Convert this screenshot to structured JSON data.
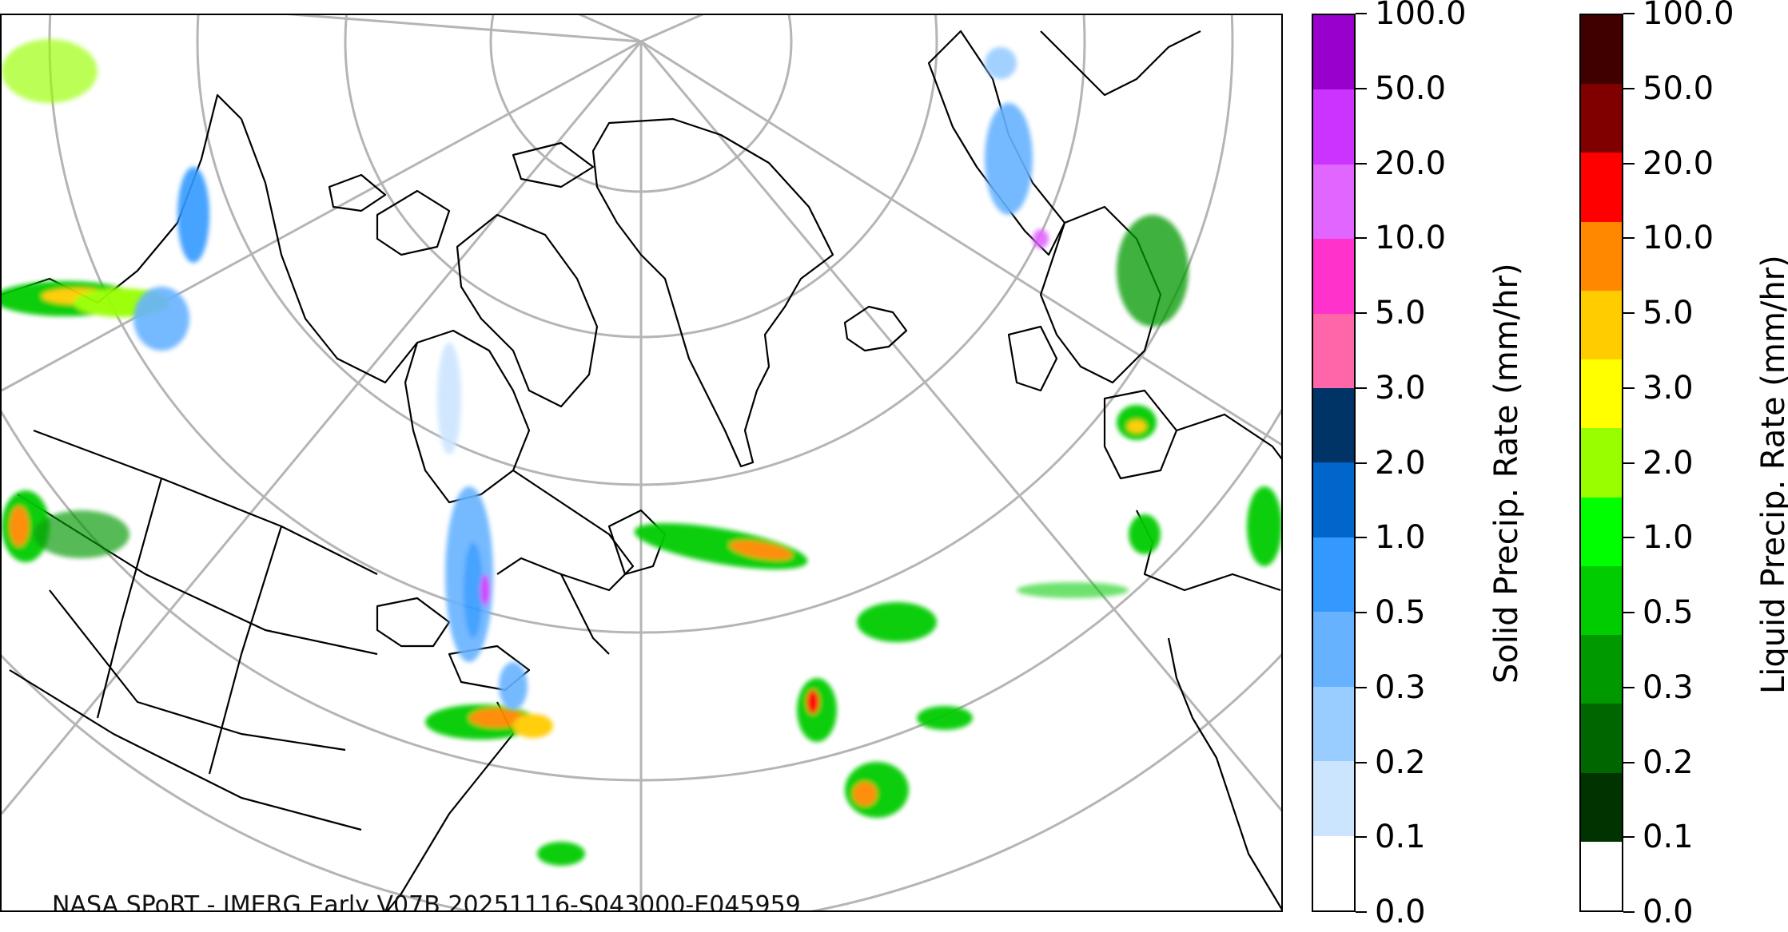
{
  "map": {
    "credit": "NASA SPoRT - IMERG Early V07B 20251116-S043000-E045959",
    "projection": "polar-stereographic",
    "gridline_color": "#b5b5b5",
    "coastline_color": "#000000"
  },
  "legend": {
    "tick_labels": [
      "0.0",
      "0.1",
      "0.2",
      "0.3",
      "0.5",
      "1.0",
      "2.0",
      "3.0",
      "5.0",
      "10.0",
      "20.0",
      "50.0",
      "100.0"
    ],
    "solid": {
      "title": "Solid Precip. Rate (mm/hr)",
      "colors": [
        "#ffffff",
        "#cce5ff",
        "#99ccff",
        "#66b2ff",
        "#3399ff",
        "#0066cc",
        "#003366",
        "#ff66aa",
        "#ff33cc",
        "#e066ff",
        "#cc33ff",
        "#9900cc"
      ]
    },
    "liquid": {
      "title": "Liquid Precip. Rate (mm/hr)",
      "colors": [
        "#ffffff",
        "#003300",
        "#006600",
        "#009900",
        "#00cc00",
        "#00ff00",
        "#99ff00",
        "#ffff00",
        "#ffcc00",
        "#ff8800",
        "#ff0000",
        "#800000",
        "#400000"
      ]
    }
  }
}
